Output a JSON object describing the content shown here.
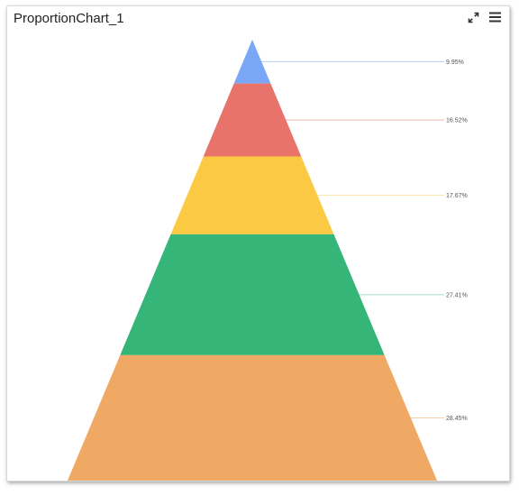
{
  "widget": {
    "title": "ProportionChart_1",
    "icons": [
      "expand-icon",
      "menu-icon"
    ]
  },
  "chart_data": {
    "type": "pyramid",
    "values": [
      9.95,
      16.52,
      17.67,
      27.41,
      28.45
    ],
    "labels": [
      "9.95%",
      "16.52%",
      "17.67%",
      "27.41%",
      "28.45%"
    ],
    "colors": [
      "#7aa7f5",
      "#e8736a",
      "#fbc944",
      "#35b578",
      "#f0a965"
    ],
    "legend": "none"
  }
}
